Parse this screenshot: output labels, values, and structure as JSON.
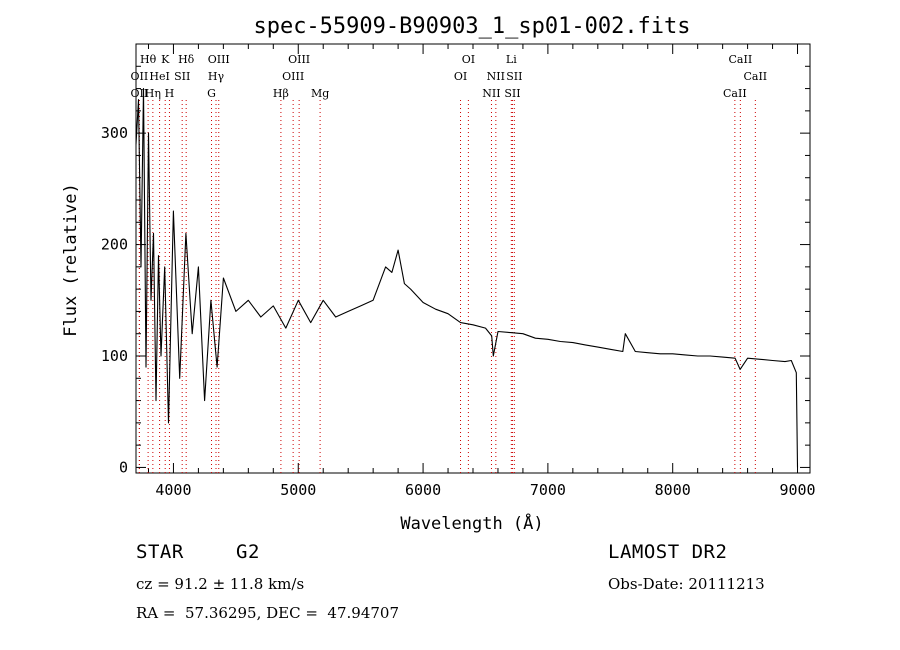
{
  "chart_data": {
    "type": "line",
    "title": "spec-55909-B90903_1_sp01-002.fits",
    "xlabel": "Wavelength (Å)",
    "ylabel": "Flux (relative)",
    "xlim": [
      3700,
      9100
    ],
    "ylim": [
      -5,
      380
    ],
    "xticks": [
      4000,
      5000,
      6000,
      7000,
      8000,
      9000
    ],
    "yticks": [
      0,
      100,
      200,
      300
    ],
    "grid": false,
    "series": [
      {
        "color": "#000000",
        "x": [
          3700,
          3720,
          3740,
          3760,
          3780,
          3800,
          3820,
          3840,
          3860,
          3880,
          3900,
          3930,
          3960,
          4000,
          4050,
          4100,
          4150,
          4200,
          4250,
          4300,
          4350,
          4400,
          4500,
          4600,
          4700,
          4800,
          4900,
          5000,
          5100,
          5200,
          5300,
          5400,
          5500,
          5600,
          5700,
          5750,
          5800,
          5850,
          5900,
          6000,
          6100,
          6200,
          6300,
          6400,
          6500,
          6550,
          6563,
          6600,
          6700,
          6800,
          6900,
          7000,
          7100,
          7200,
          7300,
          7400,
          7500,
          7600,
          7620,
          7700,
          7800,
          7900,
          8000,
          8100,
          8200,
          8300,
          8400,
          8500,
          8540,
          8600,
          8700,
          8800,
          8900,
          8950,
          8990,
          9000
        ],
        "values": [
          290,
          330,
          180,
          340,
          90,
          300,
          150,
          210,
          60,
          190,
          100,
          180,
          40,
          230,
          80,
          210,
          120,
          180,
          60,
          150,
          90,
          170,
          140,
          150,
          135,
          145,
          125,
          150,
          130,
          150,
          135,
          140,
          145,
          150,
          180,
          175,
          195,
          165,
          160,
          148,
          142,
          138,
          130,
          128,
          125,
          118,
          100,
          122,
          121,
          120,
          116,
          115,
          113,
          112,
          110,
          108,
          106,
          104,
          120,
          104,
          103,
          102,
          102,
          101,
          100,
          100,
          99,
          98,
          88,
          98,
          97,
          96,
          95,
          96,
          85,
          0
        ]
      }
    ],
    "line_ids": [
      {
        "label": "OII",
        "wavelength": 3727,
        "row": 2
      },
      {
        "label": "OII",
        "wavelength": 3727,
        "row": 3
      },
      {
        "label": "Hθ",
        "wavelength": 3797,
        "row": 1
      },
      {
        "label": "Hη",
        "wavelength": 3835,
        "row": 3
      },
      {
        "label": "HeI",
        "wavelength": 3889,
        "row": 2
      },
      {
        "label": "K",
        "wavelength": 3934,
        "row": 1
      },
      {
        "label": "H",
        "wavelength": 3968,
        "row": 3
      },
      {
        "label": "SII",
        "wavelength": 4070,
        "row": 2
      },
      {
        "label": "Hδ",
        "wavelength": 4102,
        "row": 1
      },
      {
        "label": "G",
        "wavelength": 4305,
        "row": 3
      },
      {
        "label": "Hγ",
        "wavelength": 4341,
        "row": 2
      },
      {
        "label": "OIII",
        "wavelength": 4363,
        "row": 1
      },
      {
        "label": "Hβ",
        "wavelength": 4861,
        "row": 3
      },
      {
        "label": "OIII",
        "wavelength": 4959,
        "row": 2
      },
      {
        "label": "OIII",
        "wavelength": 5007,
        "row": 1
      },
      {
        "label": "Mg",
        "wavelength": 5175,
        "row": 3
      },
      {
        "label": "OI",
        "wavelength": 6300,
        "row": 2
      },
      {
        "label": "OI",
        "wavelength": 6363,
        "row": 1
      },
      {
        "label": "NII",
        "wavelength": 6548,
        "row": 3
      },
      {
        "label": "NII",
        "wavelength": 6583,
        "row": 2
      },
      {
        "label": "Li",
        "wavelength": 6707,
        "row": 1
      },
      {
        "label": "SII",
        "wavelength": 6716,
        "row": 3
      },
      {
        "label": "SII",
        "wavelength": 6731,
        "row": 2
      },
      {
        "label": "CaII",
        "wavelength": 8498,
        "row": 3
      },
      {
        "label": "CaII",
        "wavelength": 8542,
        "row": 1
      },
      {
        "label": "CaII",
        "wavelength": 8662,
        "row": 2
      }
    ]
  },
  "info": {
    "object_class": "STAR",
    "subclass": "G2",
    "survey": "LAMOST DR2",
    "redshift_line": "cz = 91.2 ± 11.8 km/s",
    "obs_date_line": "Obs-Date: 20111213",
    "coords_line": "RA =  57.36295, DEC =  47.94707"
  }
}
